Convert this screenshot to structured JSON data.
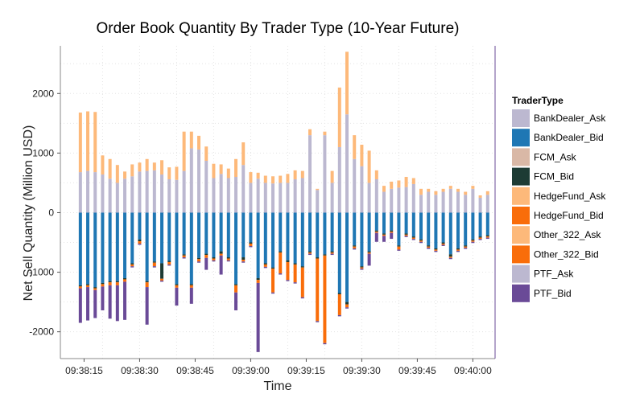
{
  "chart_data": {
    "type": "bar",
    "stacked": true,
    "title": "Order Book Quantity By Trader Type (10-Year Future)",
    "xlabel": "Time",
    "ylabel": "Net Sell Quantity (Million USD)",
    "x_ticks": [
      "09:38:15",
      "09:38:30",
      "09:38:45",
      "09:39:00",
      "09:39:15",
      "09:39:30",
      "09:39:45",
      "09:40:00"
    ],
    "y_ticks": [
      -2000,
      -1000,
      0,
      1000,
      2000
    ],
    "ylim": [
      -2450,
      2800
    ],
    "xlim_seconds": [
      4.3,
      63.0
    ],
    "grid": true,
    "legend": {
      "title": "TraderType",
      "position": "right",
      "entries": [
        {
          "name": "BankDealer_Ask",
          "color": "#bcb8d0"
        },
        {
          "name": "BankDealer_Bid",
          "color": "#1f77b4"
        },
        {
          "name": "FCM_Ask",
          "color": "#d9b8a6"
        },
        {
          "name": "FCM_Bid",
          "color": "#1d3b34"
        },
        {
          "name": "HedgeFund_Ask",
          "color": "#fdb97a"
        },
        {
          "name": "HedgeFund_Bid",
          "color": "#f96d0a"
        },
        {
          "name": "Other_322_Ask",
          "color": "#fdb97a"
        },
        {
          "name": "Other_322_Bid",
          "color": "#f96d0a"
        },
        {
          "name": "PTF_Ask",
          "color": "#bcb8d0"
        },
        {
          "name": "PTF_Bid",
          "color": "#6a4a97"
        }
      ]
    },
    "series_ask": [
      "BankDealer_Ask",
      "HedgeFund_Ask"
    ],
    "series_bid": [
      "BankDealer_Bid",
      "FCM_Bid",
      "HedgeFund_Bid",
      "PTF_Bid"
    ],
    "bars": [
      {
        "t": 7.0,
        "BankDealer_Ask": 680,
        "HedgeFund_Ask": 1000,
        "BankDealer_Bid": -1220,
        "FCM_Bid": -20,
        "HedgeFund_Bid": -30,
        "PTF_Bid": -580
      },
      {
        "t": 8.0,
        "BankDealer_Ask": 700,
        "HedgeFund_Ask": 1000,
        "BankDealer_Bid": -1200,
        "FCM_Bid": -20,
        "HedgeFund_Bid": -30,
        "PTF_Bid": -560
      },
      {
        "t": 9.0,
        "BankDealer_Ask": 680,
        "HedgeFund_Ask": 1010,
        "BankDealer_Bid": -1250,
        "FCM_Bid": -20,
        "HedgeFund_Bid": -30,
        "PTF_Bid": -470
      },
      {
        "t": 10.0,
        "BankDealer_Ask": 640,
        "HedgeFund_Ask": 320,
        "BankDealer_Bid": -1180,
        "FCM_Bid": -20,
        "HedgeFund_Bid": -40,
        "PTF_Bid": -400
      },
      {
        "t": 11.0,
        "BankDealer_Ask": 570,
        "HedgeFund_Ask": 330,
        "BankDealer_Bid": -1150,
        "FCM_Bid": -20,
        "HedgeFund_Bid": -50,
        "PTF_Bid": -560
      },
      {
        "t": 12.0,
        "BankDealer_Ask": 500,
        "HedgeFund_Ask": 300,
        "BankDealer_Bid": -1150,
        "FCM_Bid": -20,
        "HedgeFund_Bid": -50,
        "PTF_Bid": -600
      },
      {
        "t": 13.0,
        "BankDealer_Ask": 570,
        "HedgeFund_Ask": 120,
        "BankDealer_Bid": -1100,
        "FCM_Bid": -20,
        "HedgeFund_Bid": -40,
        "PTF_Bid": -640
      },
      {
        "t": 14.0,
        "BankDealer_Ask": 610,
        "HedgeFund_Ask": 200,
        "BankDealer_Bid": -850,
        "FCM_Bid": -20,
        "HedgeFund_Bid": -30,
        "PTF_Bid": -20
      },
      {
        "t": 15.0,
        "BankDealer_Ask": 690,
        "HedgeFund_Ask": 150,
        "BankDealer_Bid": -450,
        "FCM_Bid": -30,
        "HedgeFund_Bid": -40,
        "PTF_Bid": -20
      },
      {
        "t": 16.0,
        "BankDealer_Ask": 700,
        "HedgeFund_Ask": 200,
        "BankDealer_Bid": -1150,
        "FCM_Bid": -20,
        "HedgeFund_Bid": -80,
        "PTF_Bid": -630
      },
      {
        "t": 17.0,
        "BankDealer_Ask": 710,
        "HedgeFund_Ask": 130,
        "BankDealer_Bid": -820,
        "FCM_Bid": -20,
        "HedgeFund_Bid": -60,
        "PTF_Bid": -20
      },
      {
        "t": 18.0,
        "BankDealer_Ask": 640,
        "HedgeFund_Ask": 240,
        "BankDealer_Bid": -850,
        "FCM_Bid": -260,
        "HedgeFund_Bid": -30,
        "PTF_Bid": -20
      },
      {
        "t": 19.0,
        "BankDealer_Ask": 560,
        "HedgeFund_Ask": 200,
        "BankDealer_Bid": -810,
        "FCM_Bid": -20,
        "HedgeFund_Bid": -40,
        "PTF_Bid": -20
      },
      {
        "t": 20.0,
        "BankDealer_Ask": 550,
        "HedgeFund_Ask": 220,
        "BankDealer_Bid": -1200,
        "FCM_Bid": -20,
        "HedgeFund_Bid": -40,
        "PTF_Bid": -300
      },
      {
        "t": 21.0,
        "BankDealer_Ask": 700,
        "HedgeFund_Ask": 660,
        "BankDealer_Bid": -700,
        "FCM_Bid": -20,
        "HedgeFund_Bid": -30,
        "PTF_Bid": -20
      },
      {
        "t": 22.0,
        "BankDealer_Ask": 1080,
        "HedgeFund_Ask": 280,
        "BankDealer_Bid": -1200,
        "FCM_Bid": -20,
        "HedgeFund_Bid": -40,
        "PTF_Bid": -270
      },
      {
        "t": 23.0,
        "BankDealer_Ask": 1060,
        "HedgeFund_Ask": 230,
        "BankDealer_Bid": -760,
        "FCM_Bid": -20,
        "HedgeFund_Bid": -40,
        "PTF_Bid": -20
      },
      {
        "t": 24.0,
        "BankDealer_Ask": 870,
        "HedgeFund_Ask": 240,
        "BankDealer_Bid": -690,
        "FCM_Bid": -20,
        "HedgeFund_Bid": -50,
        "PTF_Bid": -200
      },
      {
        "t": 25.0,
        "BankDealer_Ask": 580,
        "HedgeFund_Ask": 240,
        "BankDealer_Bid": -750,
        "FCM_Bid": -20,
        "HedgeFund_Bid": -30,
        "PTF_Bid": -20
      },
      {
        "t": 26.0,
        "BankDealer_Ask": 650,
        "HedgeFund_Ask": 160,
        "BankDealer_Bid": -650,
        "FCM_Bid": -40,
        "HedgeFund_Bid": -30,
        "PTF_Bid": -320
      },
      {
        "t": 27.0,
        "BankDealer_Ask": 580,
        "HedgeFund_Ask": 160,
        "BankDealer_Bid": -750,
        "FCM_Bid": -20,
        "HedgeFund_Bid": -30,
        "PTF_Bid": -20
      },
      {
        "t": 28.0,
        "BankDealer_Ask": 600,
        "HedgeFund_Ask": 300,
        "BankDealer_Bid": -1200,
        "FCM_Bid": -20,
        "HedgeFund_Bid": -120,
        "PTF_Bid": -300
      },
      {
        "t": 29.0,
        "BankDealer_Ask": 800,
        "HedgeFund_Ask": 380,
        "BankDealer_Bid": -750,
        "FCM_Bid": -40,
        "HedgeFund_Bid": -30,
        "PTF_Bid": -20
      },
      {
        "t": 30.0,
        "BankDealer_Ask": 500,
        "HedgeFund_Ask": 180,
        "BankDealer_Bid": -500,
        "FCM_Bid": -20,
        "HedgeFund_Bid": -40,
        "PTF_Bid": -20
      },
      {
        "t": 31.0,
        "BankDealer_Ask": 570,
        "HedgeFund_Ask": 100,
        "BankDealer_Bid": -1100,
        "FCM_Bid": -30,
        "HedgeFund_Bid": -50,
        "PTF_Bid": -1160
      },
      {
        "t": 32.0,
        "BankDealer_Ask": 500,
        "HedgeFund_Ask": 120,
        "BankDealer_Bid": -850,
        "FCM_Bid": -20,
        "HedgeFund_Bid": -40,
        "PTF_Bid": -20
      },
      {
        "t": 33.0,
        "BankDealer_Ask": 490,
        "HedgeFund_Ask": 120,
        "BankDealer_Bid": -920,
        "FCM_Bid": -20,
        "HedgeFund_Bid": -400,
        "PTF_Bid": -20
      },
      {
        "t": 34.0,
        "BankDealer_Ask": 500,
        "HedgeFund_Ask": 120,
        "BankDealer_Bid": -650,
        "FCM_Bid": -20,
        "HedgeFund_Bid": -350,
        "PTF_Bid": -20
      },
      {
        "t": 35.0,
        "BankDealer_Ask": 500,
        "HedgeFund_Ask": 150,
        "BankDealer_Bid": -800,
        "FCM_Bid": -30,
        "HedgeFund_Bid": -300,
        "PTF_Bid": -20
      },
      {
        "t": 36.0,
        "BankDealer_Ask": 560,
        "HedgeFund_Ask": 150,
        "BankDealer_Bid": -850,
        "FCM_Bid": -20,
        "HedgeFund_Bid": -300,
        "PTF_Bid": -20
      },
      {
        "t": 37.0,
        "BankDealer_Ask": 580,
        "HedgeFund_Ask": 120,
        "BankDealer_Bid": -900,
        "FCM_Bid": -20,
        "HedgeFund_Bid": -500,
        "PTF_Bid": -20
      },
      {
        "t": 38.0,
        "BankDealer_Ask": 1300,
        "HedgeFund_Ask": 100,
        "BankDealer_Bid": -650,
        "FCM_Bid": -20,
        "HedgeFund_Bid": -20,
        "PTF_Bid": -20
      },
      {
        "t": 39.0,
        "BankDealer_Ask": 380,
        "HedgeFund_Ask": 20,
        "BankDealer_Bid": -750,
        "FCM_Bid": -20,
        "HedgeFund_Bid": -1050,
        "PTF_Bid": -20
      },
      {
        "t": 40.0,
        "BankDealer_Ask": 1300,
        "HedgeFund_Ask": 60,
        "BankDealer_Bid": -700,
        "FCM_Bid": -20,
        "HedgeFund_Bid": -1470,
        "PTF_Bid": -20
      },
      {
        "t": 41.0,
        "BankDealer_Ask": 500,
        "HedgeFund_Ask": 200,
        "BankDealer_Bid": -650,
        "FCM_Bid": -20,
        "HedgeFund_Bid": -20,
        "PTF_Bid": -20
      },
      {
        "t": 42.0,
        "BankDealer_Ask": 1100,
        "HedgeFund_Ask": 1000,
        "BankDealer_Bid": -1350,
        "FCM_Bid": -20,
        "HedgeFund_Bid": -350,
        "PTF_Bid": -20
      },
      {
        "t": 43.0,
        "BankDealer_Ask": 1650,
        "HedgeFund_Ask": 1050,
        "BankDealer_Bid": -1500,
        "FCM_Bid": -40,
        "HedgeFund_Bid": -50,
        "PTF_Bid": -20
      },
      {
        "t": 44.0,
        "BankDealer_Ask": 900,
        "HedgeFund_Ask": 400,
        "BankDealer_Bid": -550,
        "FCM_Bid": -20,
        "HedgeFund_Bid": -30,
        "PTF_Bid": -20
      },
      {
        "t": 45.0,
        "BankDealer_Ask": 780,
        "HedgeFund_Ask": 360,
        "BankDealer_Bid": -900,
        "FCM_Bid": -20,
        "HedgeFund_Bid": -20,
        "PTF_Bid": -20
      },
      {
        "t": 46.0,
        "BankDealer_Ask": 500,
        "HedgeFund_Ask": 540,
        "BankDealer_Bid": -650,
        "FCM_Bid": -20,
        "HedgeFund_Bid": -20,
        "PTF_Bid": -200
      },
      {
        "t": 47.0,
        "BankDealer_Ask": 560,
        "HedgeFund_Ask": 150,
        "BankDealer_Bid": -300,
        "FCM_Bid": -20,
        "HedgeFund_Bid": -20,
        "PTF_Bid": -150
      },
      {
        "t": 48.0,
        "BankDealer_Ask": 350,
        "HedgeFund_Ask": 100,
        "BankDealer_Bid": -350,
        "FCM_Bid": -20,
        "HedgeFund_Bid": -20,
        "PTF_Bid": -100
      },
      {
        "t": 49.0,
        "BankDealer_Ask": 400,
        "HedgeFund_Ask": 120,
        "BankDealer_Bid": -300,
        "FCM_Bid": -20,
        "HedgeFund_Bid": -20,
        "PTF_Bid": -100
      },
      {
        "t": 50.0,
        "BankDealer_Ask": 420,
        "HedgeFund_Ask": 120,
        "BankDealer_Bid": -550,
        "FCM_Bid": -20,
        "HedgeFund_Bid": -50,
        "PTF_Bid": -20
      },
      {
        "t": 51.0,
        "BankDealer_Ask": 430,
        "HedgeFund_Ask": 170,
        "BankDealer_Bid": -350,
        "FCM_Bid": -20,
        "HedgeFund_Bid": -20,
        "PTF_Bid": -20
      },
      {
        "t": 52.0,
        "BankDealer_Ask": 480,
        "HedgeFund_Ask": 100,
        "BankDealer_Bid": -400,
        "FCM_Bid": -20,
        "HedgeFund_Bid": -20,
        "PTF_Bid": -20
      },
      {
        "t": 53.0,
        "BankDealer_Ask": 300,
        "HedgeFund_Ask": 100,
        "BankDealer_Bid": -450,
        "FCM_Bid": -20,
        "HedgeFund_Bid": -20,
        "PTF_Bid": -20
      },
      {
        "t": 54.0,
        "BankDealer_Ask": 350,
        "HedgeFund_Ask": 50,
        "BankDealer_Bid": -550,
        "FCM_Bid": -20,
        "HedgeFund_Bid": -20,
        "PTF_Bid": -20
      },
      {
        "t": 55.0,
        "BankDealer_Ask": 300,
        "HedgeFund_Ask": 60,
        "BankDealer_Bid": -600,
        "FCM_Bid": -20,
        "HedgeFund_Bid": -20,
        "PTF_Bid": -20
      },
      {
        "t": 56.0,
        "BankDealer_Ask": 350,
        "HedgeFund_Ask": 50,
        "BankDealer_Bid": -500,
        "FCM_Bid": -20,
        "HedgeFund_Bid": -20,
        "PTF_Bid": -20
      },
      {
        "t": 57.0,
        "BankDealer_Ask": 400,
        "HedgeFund_Ask": 50,
        "BankDealer_Bid": -700,
        "FCM_Bid": -40,
        "HedgeFund_Bid": -20,
        "PTF_Bid": -20
      },
      {
        "t": 58.0,
        "BankDealer_Ask": 350,
        "HedgeFund_Ask": 50,
        "BankDealer_Bid": -600,
        "FCM_Bid": -20,
        "HedgeFund_Bid": -20,
        "PTF_Bid": -20
      },
      {
        "t": 59.0,
        "BankDealer_Ask": 300,
        "HedgeFund_Ask": 50,
        "BankDealer_Bid": -550,
        "FCM_Bid": -20,
        "HedgeFund_Bid": -20,
        "PTF_Bid": -20
      },
      {
        "t": 60.0,
        "BankDealer_Ask": 400,
        "HedgeFund_Ask": 50,
        "BankDealer_Bid": -450,
        "FCM_Bid": -20,
        "HedgeFund_Bid": -20,
        "PTF_Bid": -20
      },
      {
        "t": 61.0,
        "BankDealer_Ask": 250,
        "HedgeFund_Ask": 40,
        "BankDealer_Bid": -400,
        "FCM_Bid": -20,
        "HedgeFund_Bid": -20,
        "PTF_Bid": -20
      },
      {
        "t": 62.0,
        "BankDealer_Ask": 300,
        "HedgeFund_Ask": 60,
        "BankDealer_Bid": -380,
        "FCM_Bid": -20,
        "HedgeFund_Bid": -20,
        "PTF_Bid": -20
      }
    ]
  }
}
